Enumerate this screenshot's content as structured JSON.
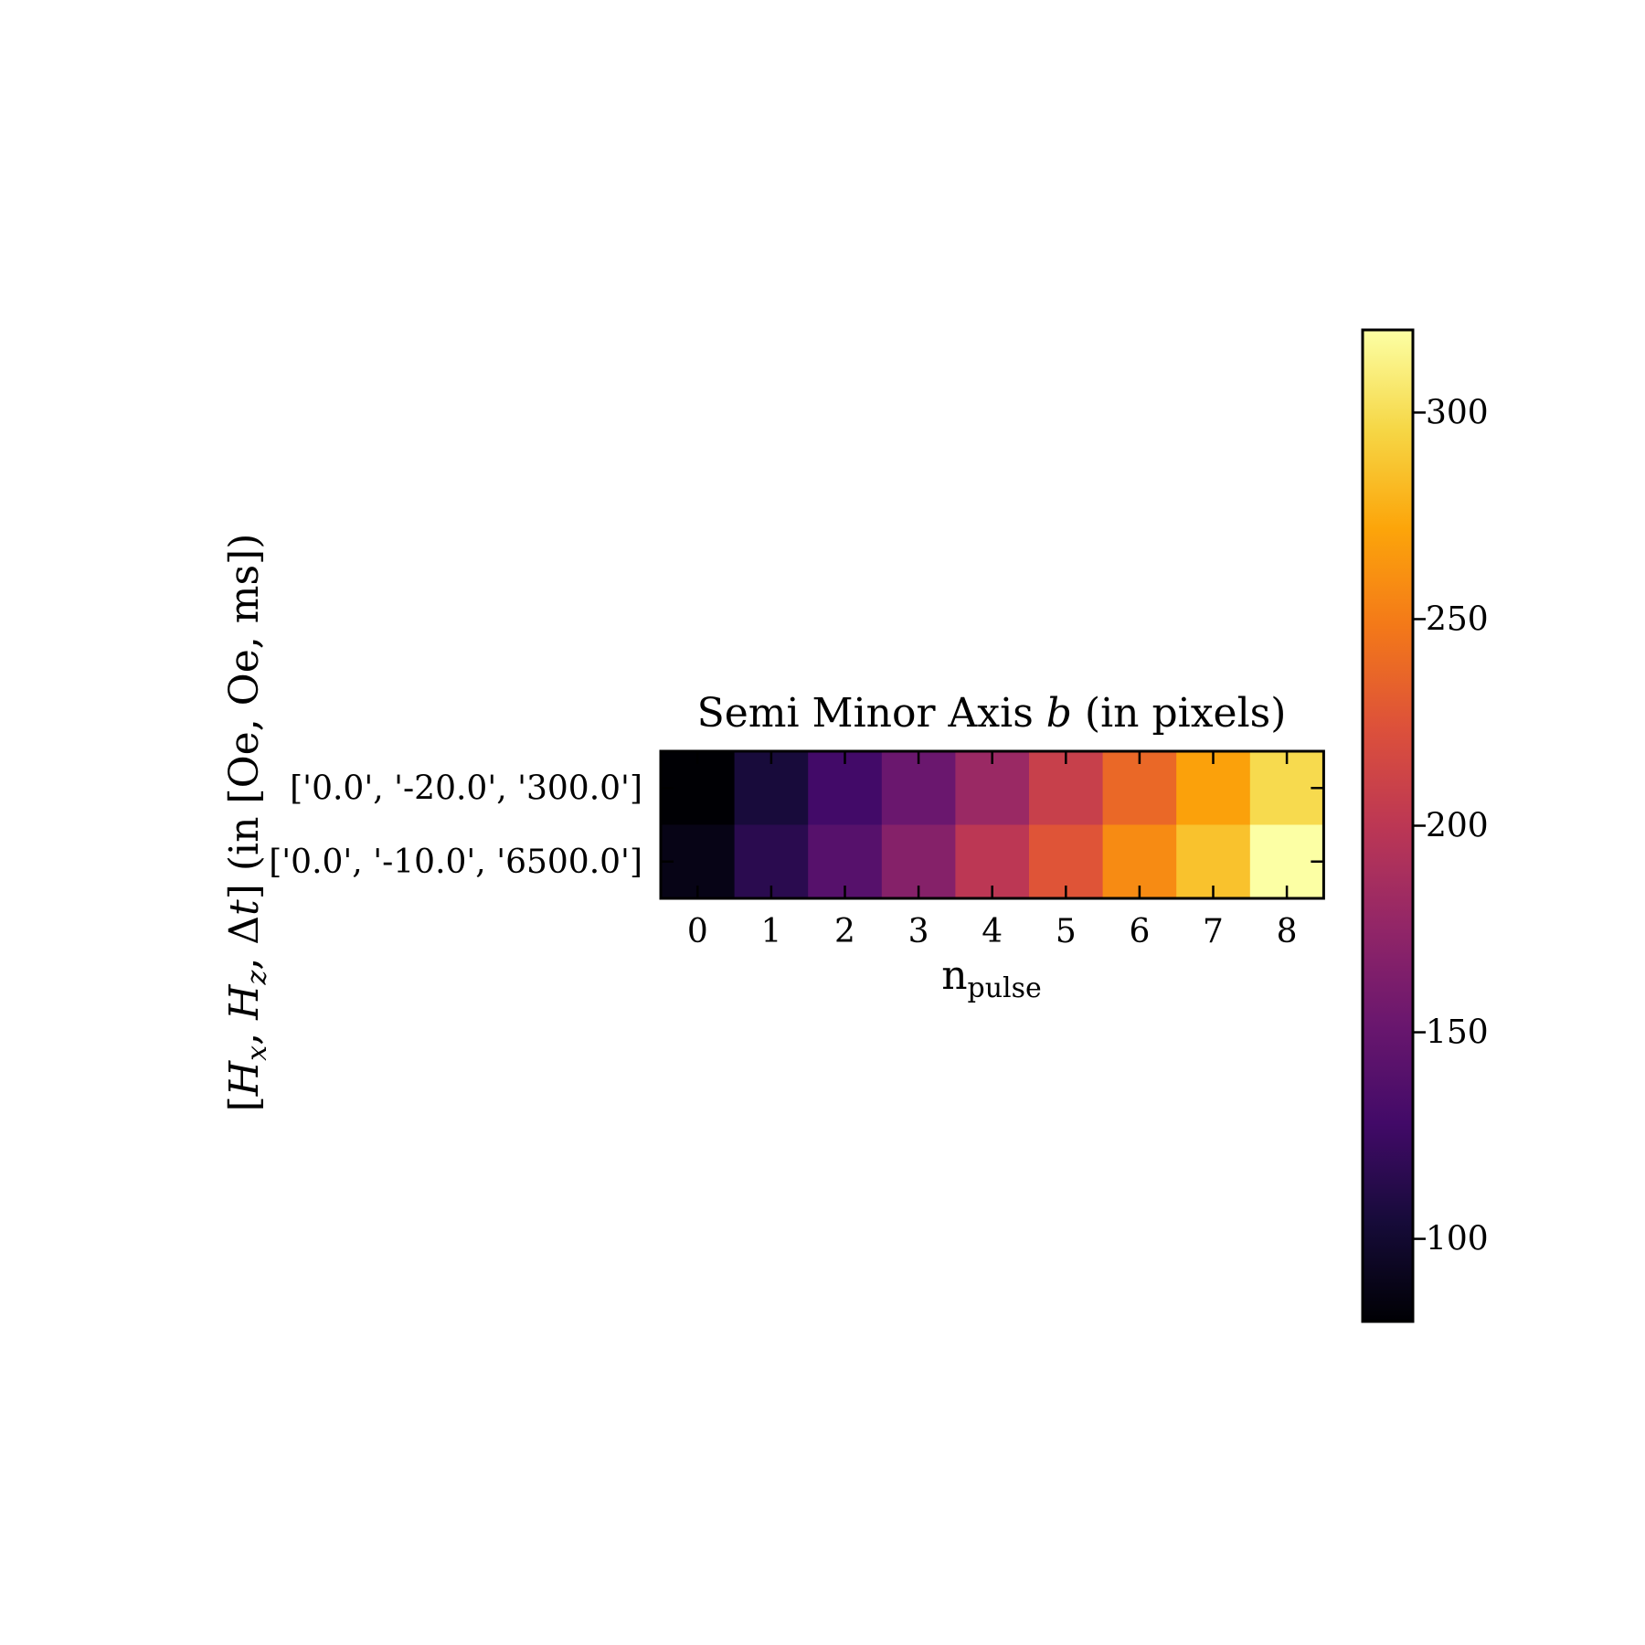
{
  "chart_data": {
    "type": "heatmap",
    "title_prefix": "Semi Minor Axis ",
    "title_var": "b",
    "title_suffix": " (in pixels)",
    "xlabel_main": "n",
    "xlabel_sub": "pulse",
    "ylabel_prefix": "[",
    "ylabel_h1": "H",
    "ylabel_h1_sub": "x",
    "ylabel_sep1": ", ",
    "ylabel_h2": "H",
    "ylabel_h2_sub": "z",
    "ylabel_sep2": ", Δ",
    "ylabel_t": "t",
    "ylabel_suffix": "] (in [Oe, Oe, ms])",
    "x_categories": [
      "0",
      "1",
      "2",
      "3",
      "4",
      "5",
      "6",
      "7",
      "8"
    ],
    "y_categories": [
      "['0.0', '-20.0', '300.0']",
      "['0.0', '-10.0', '6500.0']"
    ],
    "values": [
      [
        80,
        105,
        128,
        152,
        180,
        208,
        238,
        270,
        298
      ],
      [
        88,
        115,
        140,
        168,
        200,
        226,
        258,
        286,
        320
      ]
    ],
    "colormap": "inferno",
    "colorbar": {
      "vmin": 80,
      "vmax": 320,
      "ticks": [
        100,
        150,
        200,
        250,
        300
      ]
    }
  }
}
